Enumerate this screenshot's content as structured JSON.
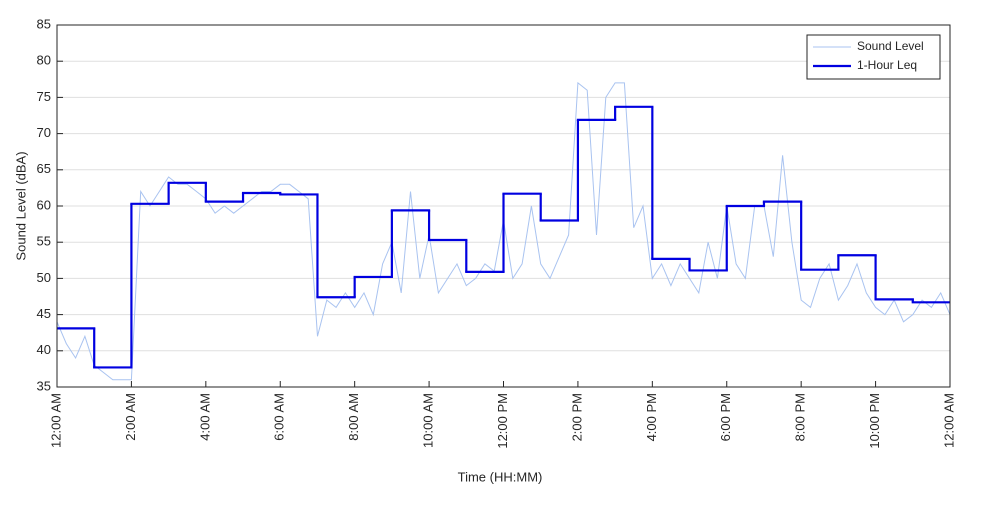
{
  "chart_data": {
    "type": "line",
    "xlabel": "Time (HH:MM)",
    "ylabel": "Sound Level (dBA)",
    "xlim": [
      0,
      24
    ],
    "ylim": [
      35,
      85
    ],
    "xticks": [
      {
        "value": 0,
        "label": "12:00 AM"
      },
      {
        "value": 2,
        "label": "2:00 AM"
      },
      {
        "value": 4,
        "label": "4:00 AM"
      },
      {
        "value": 6,
        "label": "6:00 AM"
      },
      {
        "value": 8,
        "label": "8:00 AM"
      },
      {
        "value": 10,
        "label": "10:00 AM"
      },
      {
        "value": 12,
        "label": "12:00 PM"
      },
      {
        "value": 14,
        "label": "2:00 PM"
      },
      {
        "value": 16,
        "label": "4:00 PM"
      },
      {
        "value": 18,
        "label": "6:00 PM"
      },
      {
        "value": 20,
        "label": "8:00 PM"
      },
      {
        "value": 22,
        "label": "10:00 PM"
      },
      {
        "value": 24,
        "label": "12:00 AM"
      }
    ],
    "yticks": [
      35,
      40,
      45,
      50,
      55,
      60,
      65,
      70,
      75,
      80,
      85
    ],
    "grid": true,
    "legend": "upper right",
    "series": [
      {
        "name": "Sound Level",
        "color": "#a9c3f0",
        "width": 1,
        "drawstyle": "default",
        "x": [
          0,
          0.25,
          0.5,
          0.75,
          1,
          1.25,
          1.5,
          1.75,
          2,
          2.25,
          2.5,
          2.75,
          3,
          3.25,
          3.5,
          3.75,
          4,
          4.25,
          4.5,
          4.75,
          5,
          5.25,
          5.5,
          5.75,
          6,
          6.25,
          6.5,
          6.75,
          7,
          7.25,
          7.5,
          7.75,
          8,
          8.25,
          8.5,
          8.75,
          9,
          9.25,
          9.5,
          9.75,
          10,
          10.25,
          10.5,
          10.75,
          11,
          11.25,
          11.5,
          11.75,
          12,
          12.25,
          12.5,
          12.75,
          13,
          13.25,
          13.5,
          13.75,
          14,
          14.25,
          14.5,
          14.75,
          15,
          15.25,
          15.5,
          15.75,
          16,
          16.25,
          16.5,
          16.75,
          17,
          17.25,
          17.5,
          17.75,
          18,
          18.25,
          18.5,
          18.75,
          19,
          19.25,
          19.5,
          19.75,
          20,
          20.25,
          20.5,
          20.75,
          21,
          21.25,
          21.5,
          21.75,
          22,
          22.25,
          22.5,
          22.75,
          23,
          23.25,
          23.5,
          23.75,
          24
        ],
        "values": [
          44,
          41,
          39,
          42,
          38,
          37,
          36,
          36,
          36,
          62,
          60,
          62,
          64,
          63,
          63,
          62,
          61,
          59,
          60,
          59,
          60,
          61,
          62,
          62,
          63,
          63,
          62,
          61,
          42,
          47,
          46,
          48,
          46,
          48,
          45,
          52,
          55,
          48,
          62,
          50,
          56,
          48,
          50,
          52,
          49,
          50,
          52,
          51,
          58,
          50,
          52,
          60,
          52,
          50,
          53,
          56,
          77,
          76,
          56,
          75,
          77,
          77,
          57,
          60,
          50,
          52,
          49,
          52,
          50,
          48,
          55,
          50,
          60,
          52,
          50,
          60,
          60,
          53,
          67,
          55,
          47,
          46,
          50,
          52,
          47,
          49,
          52,
          48,
          46,
          45,
          47,
          44,
          45,
          47,
          46,
          48,
          45
        ]
      },
      {
        "name": "1-Hour Leq",
        "color": "#0000e0",
        "width": 2.2,
        "drawstyle": "steps-post",
        "x": [
          0,
          1,
          2,
          3,
          4,
          5,
          6,
          7,
          8,
          9,
          10,
          11,
          12,
          13,
          14,
          15,
          16,
          17,
          18,
          19,
          20,
          21,
          22,
          23
        ],
        "values": [
          43.1,
          37.7,
          60.3,
          63.2,
          60.6,
          61.8,
          61.6,
          47.4,
          50.2,
          59.4,
          55.3,
          50.9,
          61.7,
          58.0,
          71.9,
          73.7,
          52.7,
          51.1,
          60.0,
          60.6,
          51.2,
          53.2,
          47.1,
          46.7
        ]
      }
    ]
  }
}
